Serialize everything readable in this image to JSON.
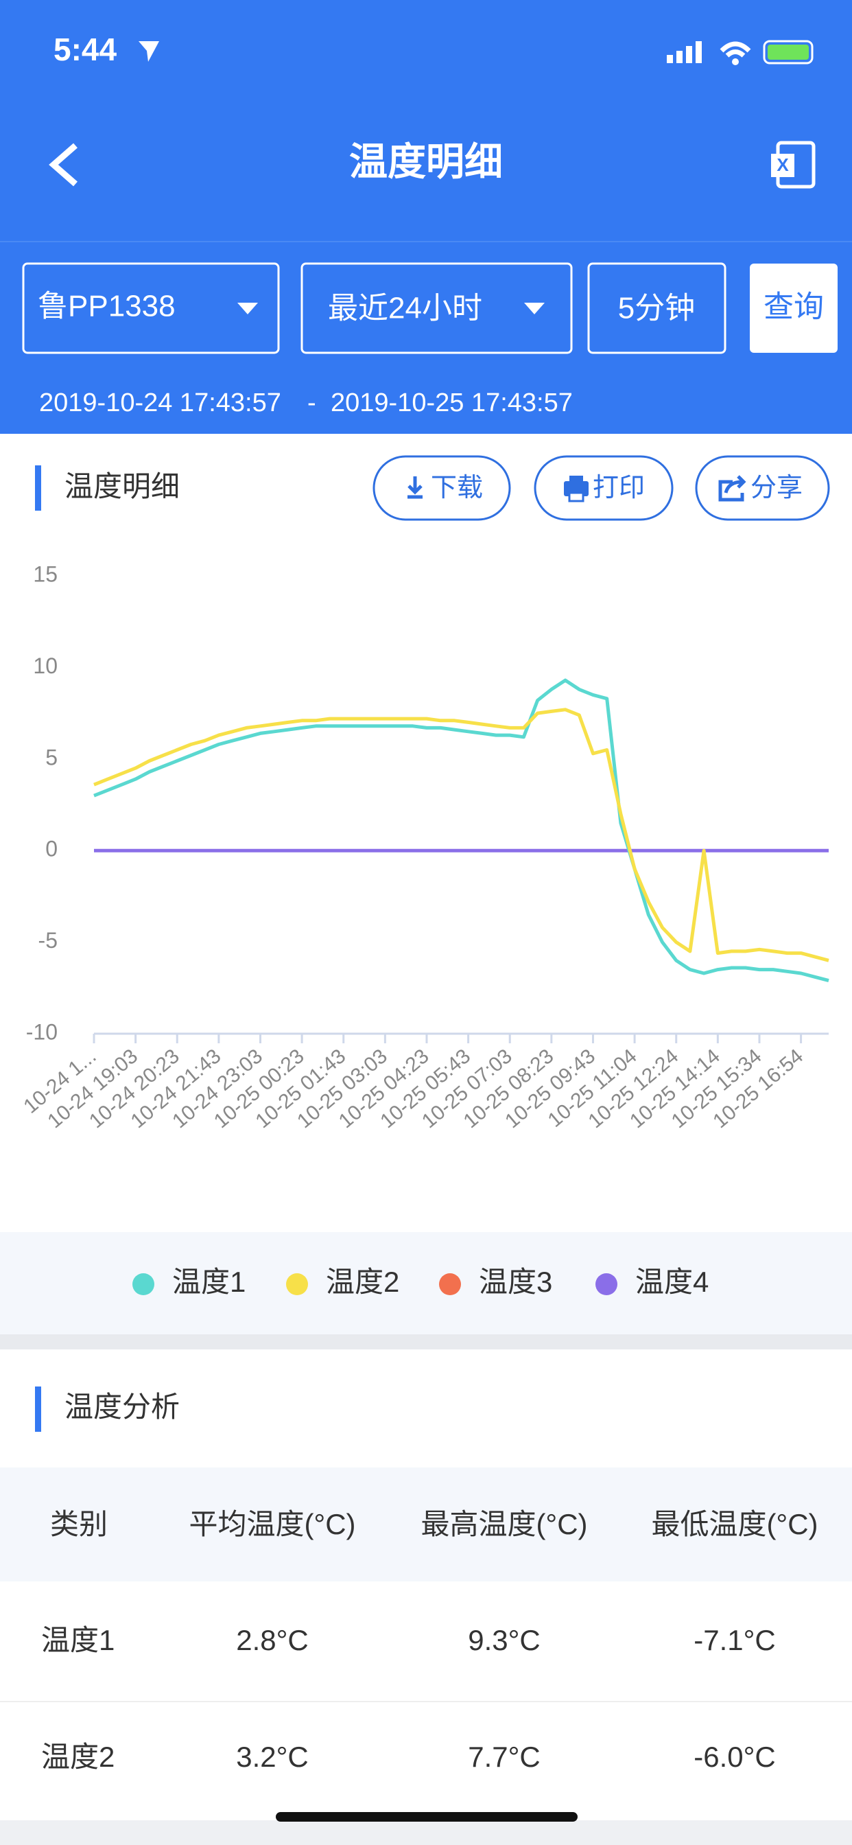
{
  "status_bar": {
    "time": "5:44"
  },
  "header": {
    "title": "温度明细"
  },
  "filters": {
    "vehicle": "鲁PP1338",
    "period": "最近24小时",
    "interval": "5分钟",
    "query_button": "查询"
  },
  "time_range": {
    "start": "2019-10-24 17:43:57",
    "separator": "-",
    "end": "2019-10-25 17:43:57"
  },
  "detail_section": {
    "title": "温度明细",
    "buttons": [
      "下载",
      "打印",
      "分享"
    ]
  },
  "chart_data": {
    "type": "line",
    "categories": [
      "10-24 1...",
      null,
      null,
      "10-24 19:03",
      null,
      null,
      "10-24 20:23",
      null,
      null,
      "10-24 21:43",
      null,
      null,
      "10-24 23:03",
      null,
      null,
      "10-25 00:23",
      null,
      null,
      "10-25 01:43",
      null,
      null,
      "10-25 03:03",
      null,
      null,
      "10-25 04:23",
      null,
      null,
      "10-25 05:43",
      null,
      null,
      "10-25 07:03",
      null,
      null,
      "10-25 08:23",
      null,
      null,
      "10-25 09:43",
      null,
      null,
      "10-25 11:04",
      null,
      null,
      "10-25 12:24",
      null,
      null,
      "10-25 14:14",
      null,
      null,
      "10-25 15:34",
      null,
      null,
      "10-25 16:54",
      null,
      null
    ],
    "series": [
      {
        "name": "温度1",
        "color": "#5ad8d0",
        "values": [
          3.0,
          3.3,
          3.6,
          3.9,
          4.3,
          4.6,
          4.9,
          5.2,
          5.5,
          5.8,
          6.0,
          6.2,
          6.4,
          6.5,
          6.6,
          6.7,
          6.8,
          6.8,
          6.8,
          6.8,
          6.8,
          6.8,
          6.8,
          6.8,
          6.7,
          6.7,
          6.6,
          6.5,
          6.4,
          6.3,
          6.3,
          6.2,
          8.2,
          8.8,
          9.3,
          8.8,
          8.5,
          8.3,
          1.5,
          -1.0,
          -3.5,
          -5.0,
          -6.0,
          -6.5,
          -6.7,
          -6.5,
          -6.4,
          -6.4,
          -6.5,
          -6.5,
          -6.6,
          -6.7,
          -6.9,
          -7.1
        ]
      },
      {
        "name": "温度2",
        "color": "#f7e049",
        "values": [
          3.6,
          3.9,
          4.2,
          4.5,
          4.9,
          5.2,
          5.5,
          5.8,
          6.0,
          6.3,
          6.5,
          6.7,
          6.8,
          6.9,
          7.0,
          7.1,
          7.1,
          7.2,
          7.2,
          7.2,
          7.2,
          7.2,
          7.2,
          7.2,
          7.2,
          7.1,
          7.1,
          7.0,
          6.9,
          6.8,
          6.7,
          6.7,
          7.5,
          7.6,
          7.7,
          7.4,
          5.3,
          5.5,
          2.0,
          -1.0,
          -2.8,
          -4.2,
          -5.0,
          -5.5,
          0.0,
          -5.6,
          -5.5,
          -5.5,
          -5.4,
          -5.5,
          -5.6,
          -5.6,
          -5.8,
          -6.0
        ]
      },
      {
        "name": "温度3",
        "color": "#f2704e",
        "values": [
          null,
          null,
          null,
          null,
          null,
          null,
          null,
          null,
          null,
          null,
          null,
          null,
          null,
          null,
          null,
          null,
          null,
          null,
          null,
          null,
          null,
          null,
          null,
          null,
          null,
          null,
          null,
          null,
          null,
          null,
          null,
          null,
          null,
          null,
          null,
          null,
          null,
          null,
          null,
          null,
          null,
          null,
          null,
          null,
          null,
          null,
          null,
          null,
          null,
          null,
          null,
          null,
          null,
          null
        ]
      },
      {
        "name": "温度4",
        "color": "#8a6ee8",
        "values": [
          0,
          0,
          0,
          0,
          0,
          0,
          0,
          0,
          0,
          0,
          0,
          0,
          0,
          0,
          0,
          0,
          0,
          0,
          0,
          0,
          0,
          0,
          0,
          0,
          0,
          0,
          0,
          0,
          0,
          0,
          0,
          0,
          0,
          0,
          0,
          0,
          0,
          0,
          0,
          0,
          0,
          0,
          0,
          0,
          0,
          0,
          0,
          0,
          0,
          0,
          0,
          0,
          0,
          0
        ]
      }
    ],
    "ylim": [
      -10,
      15
    ],
    "yticks": [
      -10,
      -5,
      0,
      5,
      10,
      15
    ],
    "grid": false,
    "legend": "bottom"
  },
  "analysis_section": {
    "title": "温度分析",
    "table": {
      "header": [
        "类别",
        "平均温度(°C)",
        "最高温度(°C)",
        "最低温度(°C)"
      ],
      "rows": [
        [
          "温度1",
          "2.8°C",
          "9.3°C",
          "-7.1°C"
        ],
        [
          "温度2",
          "3.2°C",
          "7.7°C",
          "-6.0°C"
        ]
      ]
    }
  }
}
